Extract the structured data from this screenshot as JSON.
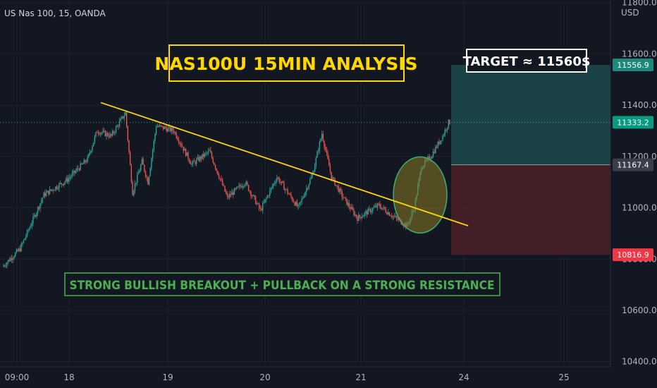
{
  "header": {
    "symbol": "US Nas 100, 15, OANDA"
  },
  "axis": {
    "currency": "USD"
  },
  "colors": {
    "background": "#131722",
    "up": "#26a69a",
    "down": "#ef5350",
    "trendline": "#ffd600",
    "title_border": "#ffd600",
    "caption_border": "#4caf50",
    "caption_text": "#4caf50",
    "target_zone": "#1d4a4a",
    "stop_zone": "#4a1f28",
    "circle_fill": "#8a7a20",
    "circle_stroke": "#3fae72",
    "grid": "#1e222d",
    "dotted_line": "#26a69a"
  },
  "annotations": {
    "title": "NAS100U 15MIN ANALYSIS",
    "target": "TARGET ≈ 11560$",
    "caption": "STRONG BULLISH BREAKOUT + PULLBACK ON A STRONG RESISTANCE"
  },
  "chart_data": {
    "type": "candlestick",
    "title": "NAS100U 15MIN ANALYSIS",
    "symbol": "US Nas 100",
    "interval": "15",
    "source": "OANDA",
    "ylabel": "USD",
    "ylim": [
      10380,
      11810
    ],
    "y_ticks": [
      "11800.0",
      "11600.0",
      "11400.0",
      "11200.0",
      "11000.0",
      "10800.0",
      "10600.0",
      "10400.0"
    ],
    "y_tick_values": [
      11800,
      11600,
      11400,
      11200,
      11000,
      10800,
      10600,
      10400
    ],
    "x_ticks": [
      "09:00",
      "18",
      "19",
      "20",
      "21",
      "24",
      "25"
    ],
    "price_labels": [
      {
        "label": "11556.9",
        "value": 11556.9,
        "kind": "target"
      },
      {
        "label": "11333.2",
        "value": 11333.2,
        "kind": "current"
      },
      {
        "label": "11167.4",
        "value": 11167.4,
        "kind": "entry"
      },
      {
        "label": "10816.9",
        "value": 10816.9,
        "kind": "stop"
      }
    ],
    "position": {
      "target": 11556.9,
      "entry": 11167.4,
      "stop": 10816.9
    },
    "price_path": [
      {
        "bar": 0,
        "price": 10770
      },
      {
        "bar": 15,
        "price": 10840
      },
      {
        "bar": 35,
        "price": 11050
      },
      {
        "bar": 55,
        "price": 11110
      },
      {
        "bar": 72,
        "price": 11190
      },
      {
        "bar": 80,
        "price": 11300
      },
      {
        "bar": 92,
        "price": 11280
      },
      {
        "bar": 104,
        "price": 11370
      },
      {
        "bar": 110,
        "price": 11060
      },
      {
        "bar": 118,
        "price": 11180
      },
      {
        "bar": 123,
        "price": 11100
      },
      {
        "bar": 130,
        "price": 11320
      },
      {
        "bar": 145,
        "price": 11300
      },
      {
        "bar": 160,
        "price": 11170
      },
      {
        "bar": 175,
        "price": 11220
      },
      {
        "bar": 190,
        "price": 11040
      },
      {
        "bar": 205,
        "price": 11100
      },
      {
        "bar": 218,
        "price": 10990
      },
      {
        "bar": 232,
        "price": 11120
      },
      {
        "bar": 250,
        "price": 11000
      },
      {
        "bar": 262,
        "price": 11130
      },
      {
        "bar": 270,
        "price": 11290
      },
      {
        "bar": 278,
        "price": 11120
      },
      {
        "bar": 288,
        "price": 11040
      },
      {
        "bar": 300,
        "price": 10960
      },
      {
        "bar": 318,
        "price": 11010
      },
      {
        "bar": 332,
        "price": 10960
      },
      {
        "bar": 342,
        "price": 10930
      },
      {
        "bar": 348,
        "price": 11000
      },
      {
        "bar": 354,
        "price": 11160
      },
      {
        "bar": 362,
        "price": 11200
      },
      {
        "bar": 372,
        "price": 11280
      },
      {
        "bar": 377,
        "price": 11333
      }
    ],
    "trendline": {
      "start_price": 11410,
      "end_price": 10930
    }
  }
}
